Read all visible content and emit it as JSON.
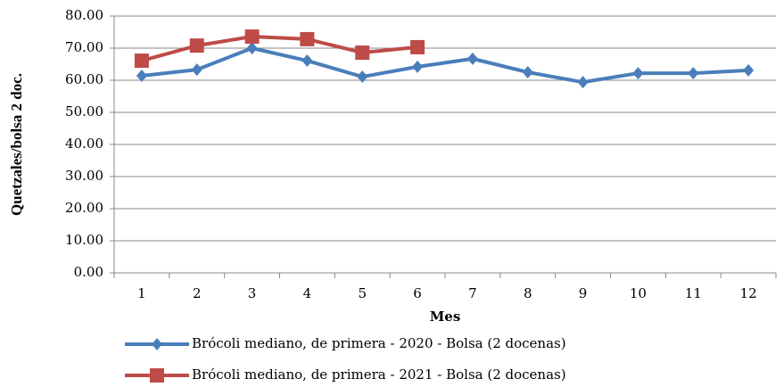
{
  "chart_data": {
    "type": "line",
    "x_label": "Mes",
    "y_label": "Quetzales/bolsa 2 doc.",
    "categories": [
      "1",
      "2",
      "3",
      "4",
      "5",
      "6",
      "7",
      "8",
      "9",
      "10",
      "11",
      "12"
    ],
    "series": [
      {
        "name": "Brócoli mediano, de primera - 2020 - Bolsa (2 docenas)",
        "color": "#4a7ebb",
        "marker": "diamond",
        "values": [
          61.4,
          63.3,
          70.0,
          66.1,
          61.1,
          64.2,
          66.7,
          62.5,
          59.4,
          62.2,
          62.2,
          63.1
        ]
      },
      {
        "name": "Brócoli mediano, de primera - 2021 - Bolsa (2 docenas)",
        "color": "#be4b48",
        "marker": "square",
        "values": [
          66.1,
          70.8,
          73.6,
          72.8,
          68.6,
          70.3,
          null,
          null,
          null,
          null,
          null,
          null
        ]
      }
    ],
    "ylim": [
      0,
      80
    ],
    "yticks": [
      {
        "value": 0,
        "label": "0.00"
      },
      {
        "value": 10,
        "label": "10.00"
      },
      {
        "value": 20,
        "label": "20.00"
      },
      {
        "value": 30,
        "label": "30.00"
      },
      {
        "value": 40,
        "label": "40.00"
      },
      {
        "value": 50,
        "label": "50.00"
      },
      {
        "value": 60,
        "label": "60.00"
      },
      {
        "value": 70,
        "label": "70.00"
      },
      {
        "value": 80,
        "label": "80.00"
      }
    ],
    "grid": true
  }
}
